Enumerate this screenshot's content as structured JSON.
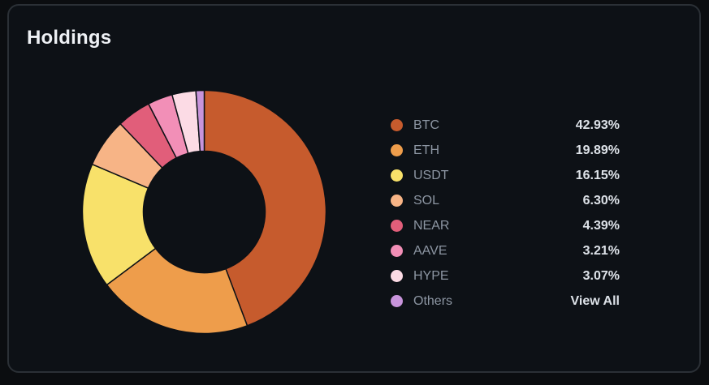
{
  "header": {
    "title": "Holdings"
  },
  "chart_data": {
    "type": "pie",
    "subtype": "donut",
    "title": "",
    "slices": [
      {
        "label": "BTC",
        "value": 42.93,
        "display": "42.93%",
        "color": "#c65b2d"
      },
      {
        "label": "ETH",
        "value": 19.89,
        "display": "19.89%",
        "color": "#ee9d4b"
      },
      {
        "label": "USDT",
        "value": 16.15,
        "display": "16.15%",
        "color": "#f8e16a"
      },
      {
        "label": "SOL",
        "value": 6.3,
        "display": "6.30%",
        "color": "#f7b486"
      },
      {
        "label": "NEAR",
        "value": 4.39,
        "display": "4.39%",
        "color": "#e15e7a"
      },
      {
        "label": "AAVE",
        "value": 3.21,
        "display": "3.21%",
        "color": "#f28fb7"
      },
      {
        "label": "HYPE",
        "value": 3.07,
        "display": "3.07%",
        "color": "#fcdbe5"
      },
      {
        "label": "Others",
        "value": 1.06,
        "display": "View All",
        "color": "#c894db"
      }
    ],
    "legend": "right"
  }
}
